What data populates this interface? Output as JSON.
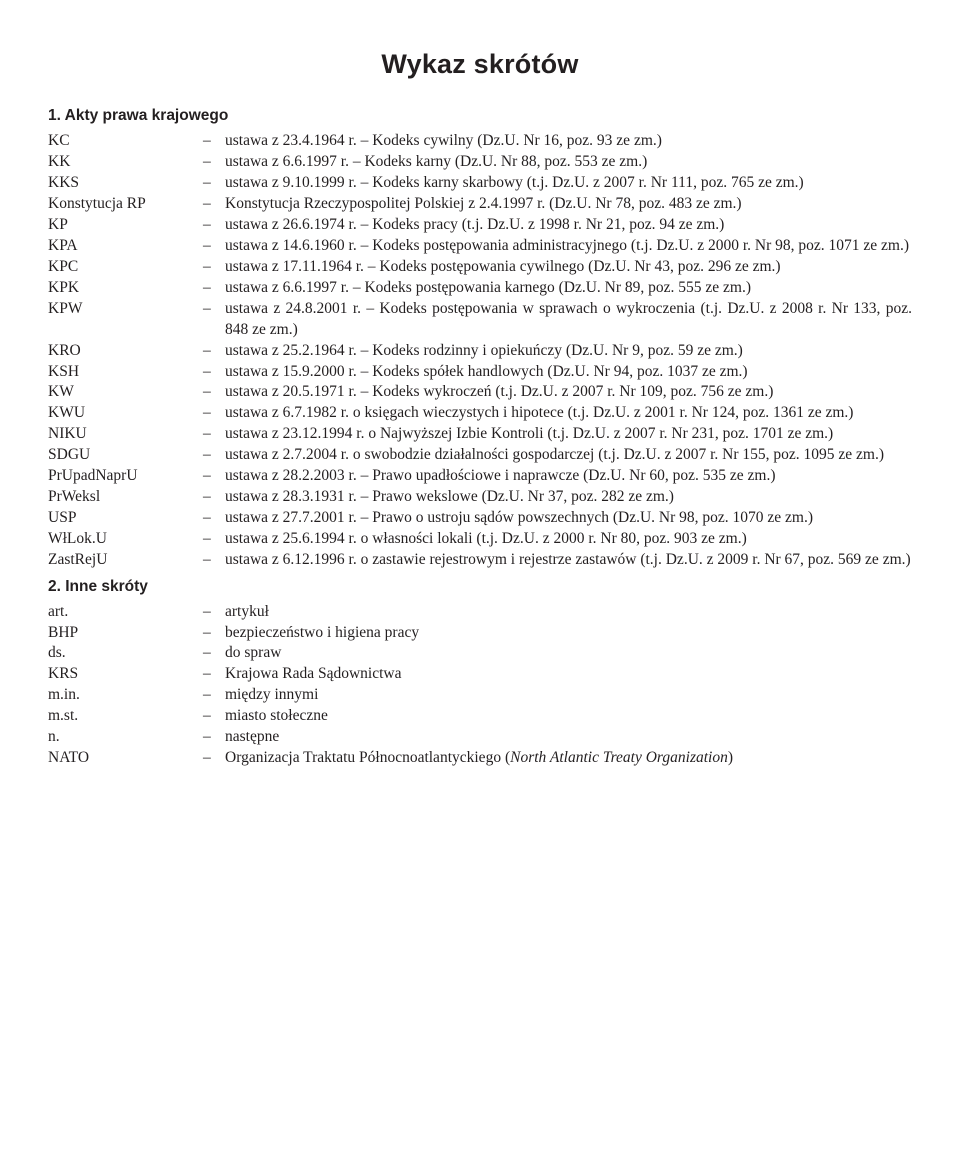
{
  "title": "Wykaz skrótów",
  "sections": [
    {
      "heading": "1. Akty prawa krajowego",
      "items": [
        {
          "abbr": "KC",
          "desc": "ustawa z 23.4.1964 r. – Kodeks cywilny (Dz.U. Nr 16, poz. 93 ze zm.)"
        },
        {
          "abbr": "KK",
          "desc": "ustawa z 6.6.1997 r. – Kodeks karny (Dz.U. Nr 88, poz. 553 ze zm.)"
        },
        {
          "abbr": "KKS",
          "desc": "ustawa z 9.10.1999 r. – Kodeks karny skarbowy (t.j. Dz.U. z 2007 r. Nr 111, poz. 765 ze zm.)"
        },
        {
          "abbr": "Konstytucja RP",
          "desc": "Konstytucja Rzeczypospolitej Polskiej z 2.4.1997 r. (Dz.U. Nr 78, poz. 483 ze zm.)"
        },
        {
          "abbr": "KP",
          "desc": "ustawa z 26.6.1974 r. – Kodeks pracy (t.j. Dz.U. z 1998 r. Nr 21, poz. 94 ze zm.)"
        },
        {
          "abbr": "KPA",
          "desc": "ustawa z 14.6.1960 r. – Kodeks postępowania administracyjnego (t.j. Dz.U. z 2000 r. Nr 98, poz. 1071 ze zm.)"
        },
        {
          "abbr": "KPC",
          "desc": "ustawa z 17.11.1964 r. – Kodeks postępowania cywilnego (Dz.U. Nr 43, poz. 296 ze zm.)"
        },
        {
          "abbr": "KPK",
          "desc": "ustawa z 6.6.1997 r. – Kodeks postępowania karnego (Dz.U. Nr 89, poz. 555 ze zm.)"
        },
        {
          "abbr": "KPW",
          "desc": "ustawa z 24.8.2001 r. – Kodeks postępowania w sprawach o wykroczenia (t.j. Dz.U. z 2008 r. Nr 133, poz. 848 ze zm.)"
        },
        {
          "abbr": "KRO",
          "desc": "ustawa z 25.2.1964 r. – Kodeks rodzinny i opiekuńczy (Dz.U. Nr 9, poz. 59 ze zm.)"
        },
        {
          "abbr": "KSH",
          "desc": "ustawa z 15.9.2000 r. – Kodeks spółek handlowych (Dz.U. Nr 94, poz. 1037 ze zm.)"
        },
        {
          "abbr": "KW",
          "desc": "ustawa z 20.5.1971 r. – Kodeks wykroczeń (t.j. Dz.U. z 2007 r. Nr 109, poz. 756 ze zm.)"
        },
        {
          "abbr": "KWU",
          "desc": "ustawa z 6.7.1982 r. o księgach wieczystych i hipotece (t.j. Dz.U. z 2001 r. Nr 124, poz. 1361 ze zm.)"
        },
        {
          "abbr": "NIKU",
          "desc": "ustawa z 23.12.1994 r. o Najwyższej Izbie Kontroli (t.j. Dz.U. z 2007 r. Nr 231, poz. 1701 ze zm.)"
        },
        {
          "abbr": "SDGU",
          "desc": "ustawa z 2.7.2004 r. o swobodzie działalności gospodarczej (t.j. Dz.U. z 2007 r. Nr 155, poz. 1095 ze zm.)"
        },
        {
          "abbr": "PrUpadNaprU",
          "desc": "ustawa z 28.2.2003 r. – Prawo upadłościowe i naprawcze (Dz.U. Nr 60, poz. 535 ze zm.)"
        },
        {
          "abbr": "PrWeksl",
          "desc": "ustawa z 28.3.1931 r. – Prawo wekslowe (Dz.U. Nr 37, poz. 282 ze zm.)"
        },
        {
          "abbr": "USP",
          "desc": "ustawa z 27.7.2001 r. – Prawo o ustroju sądów powszechnych (Dz.U. Nr 98, poz. 1070 ze zm.)"
        },
        {
          "abbr": "WłLok.U",
          "desc": "ustawa z 25.6.1994 r. o własności lokali (t.j. Dz.U. z 2000 r. Nr 80, poz. 903 ze zm.)"
        },
        {
          "abbr": "ZastRejU",
          "desc": "ustawa z 6.12.1996 r. o zastawie rejestrowym i rejestrze zastawów (t.j. Dz.U. z 2009 r. Nr 67, poz. 569 ze zm.)"
        }
      ]
    },
    {
      "heading": "2. Inne skróty",
      "items": [
        {
          "abbr": "art.",
          "desc": "artykuł"
        },
        {
          "abbr": "BHP",
          "desc": "bezpieczeństwo i higiena pracy"
        },
        {
          "abbr": "ds.",
          "desc": "do spraw"
        },
        {
          "abbr": "KRS",
          "desc": "Krajowa Rada Sądownictwa"
        },
        {
          "abbr": "m.in.",
          "desc": "między innymi"
        },
        {
          "abbr": "m.st.",
          "desc": "miasto stołeczne"
        },
        {
          "abbr": "n.",
          "desc": "następne"
        },
        {
          "abbr": "NATO",
          "desc": "Organizacja Traktatu Północnoatlantyckiego (North Atlantic Treaty Organization)"
        }
      ]
    }
  ]
}
